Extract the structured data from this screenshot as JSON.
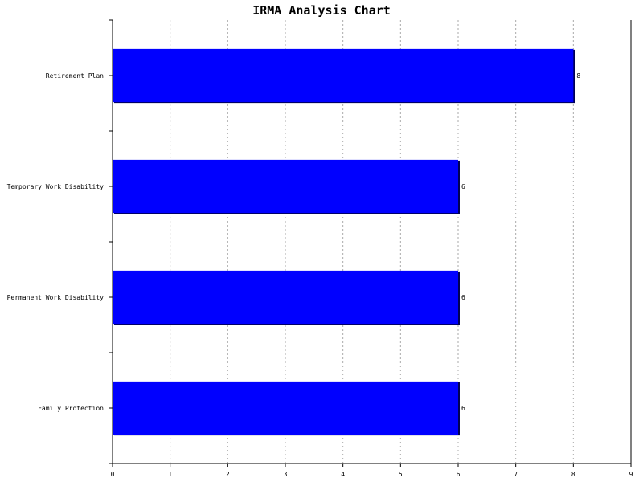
{
  "chart_data": {
    "type": "bar",
    "orientation": "horizontal",
    "title": "IRMA Analysis Chart",
    "xlabel": "",
    "ylabel": "",
    "categories": [
      "Retirement Plan",
      "Temporary Work Disability",
      "Permanent Work Disability",
      "Family Protection"
    ],
    "values": [
      8,
      6,
      6,
      6
    ],
    "data_labels": [
      "8",
      "6",
      "6",
      "6"
    ],
    "xlim": [
      0,
      9
    ],
    "xticks": [
      "0",
      "1",
      "2",
      "3",
      "4",
      "5",
      "6",
      "7",
      "8",
      "9"
    ],
    "grid": "vertical dotted",
    "legend": "none",
    "bar_color": "#0000ff"
  }
}
